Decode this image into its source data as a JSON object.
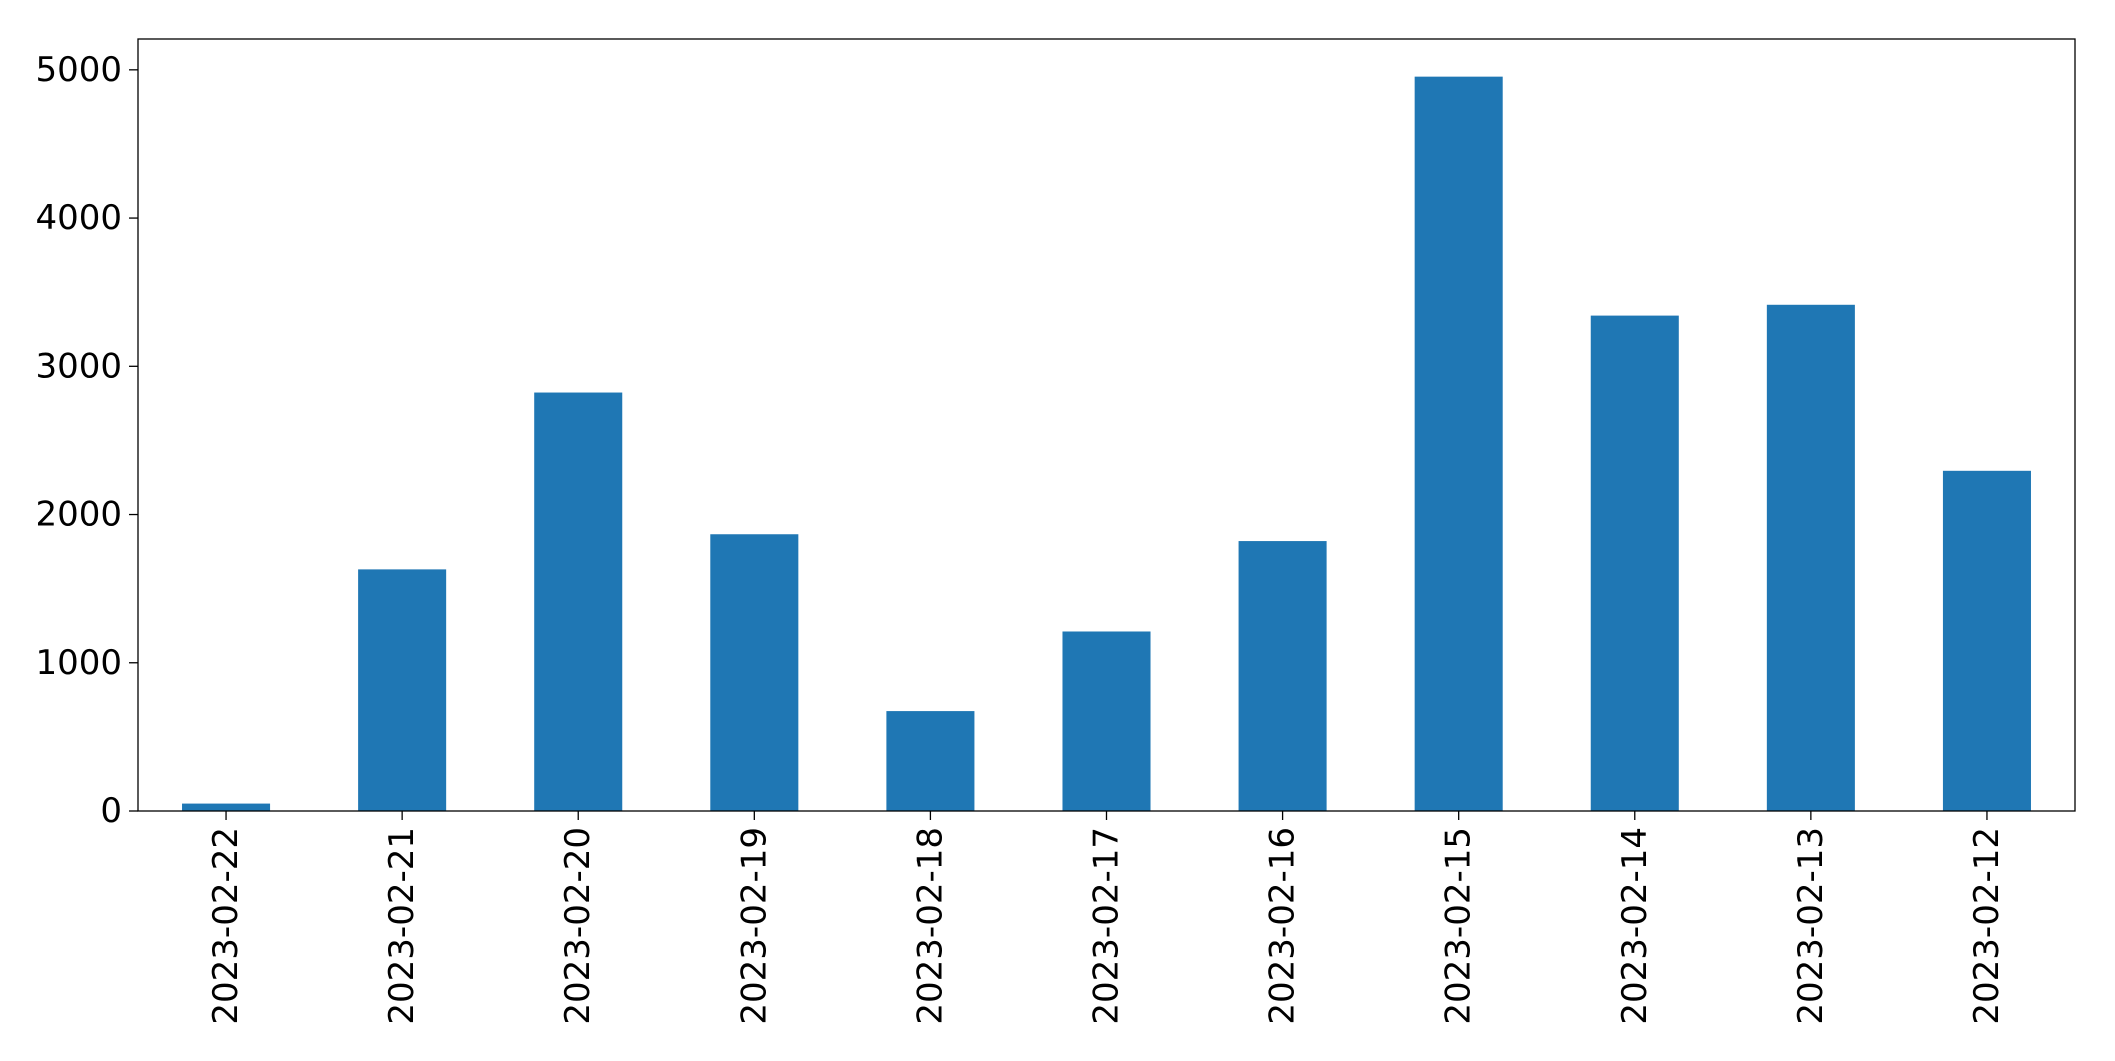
{
  "chart_data": {
    "type": "bar",
    "categories": [
      "2023-02-22",
      "2023-02-21",
      "2023-02-20",
      "2023-02-19",
      "2023-02-18",
      "2023-02-17",
      "2023-02-16",
      "2023-02-15",
      "2023-02-14",
      "2023-02-13",
      "2023-02-12"
    ],
    "values": [
      50,
      1630,
      2823,
      1867,
      674,
      1211,
      1821,
      4954,
      3342,
      3415,
      2295
    ],
    "color": "#1f77b4",
    "ylim": [
      0,
      5208
    ],
    "yticks": [
      0,
      1000,
      2000,
      3000,
      4000,
      5000
    ],
    "grid": false
  }
}
